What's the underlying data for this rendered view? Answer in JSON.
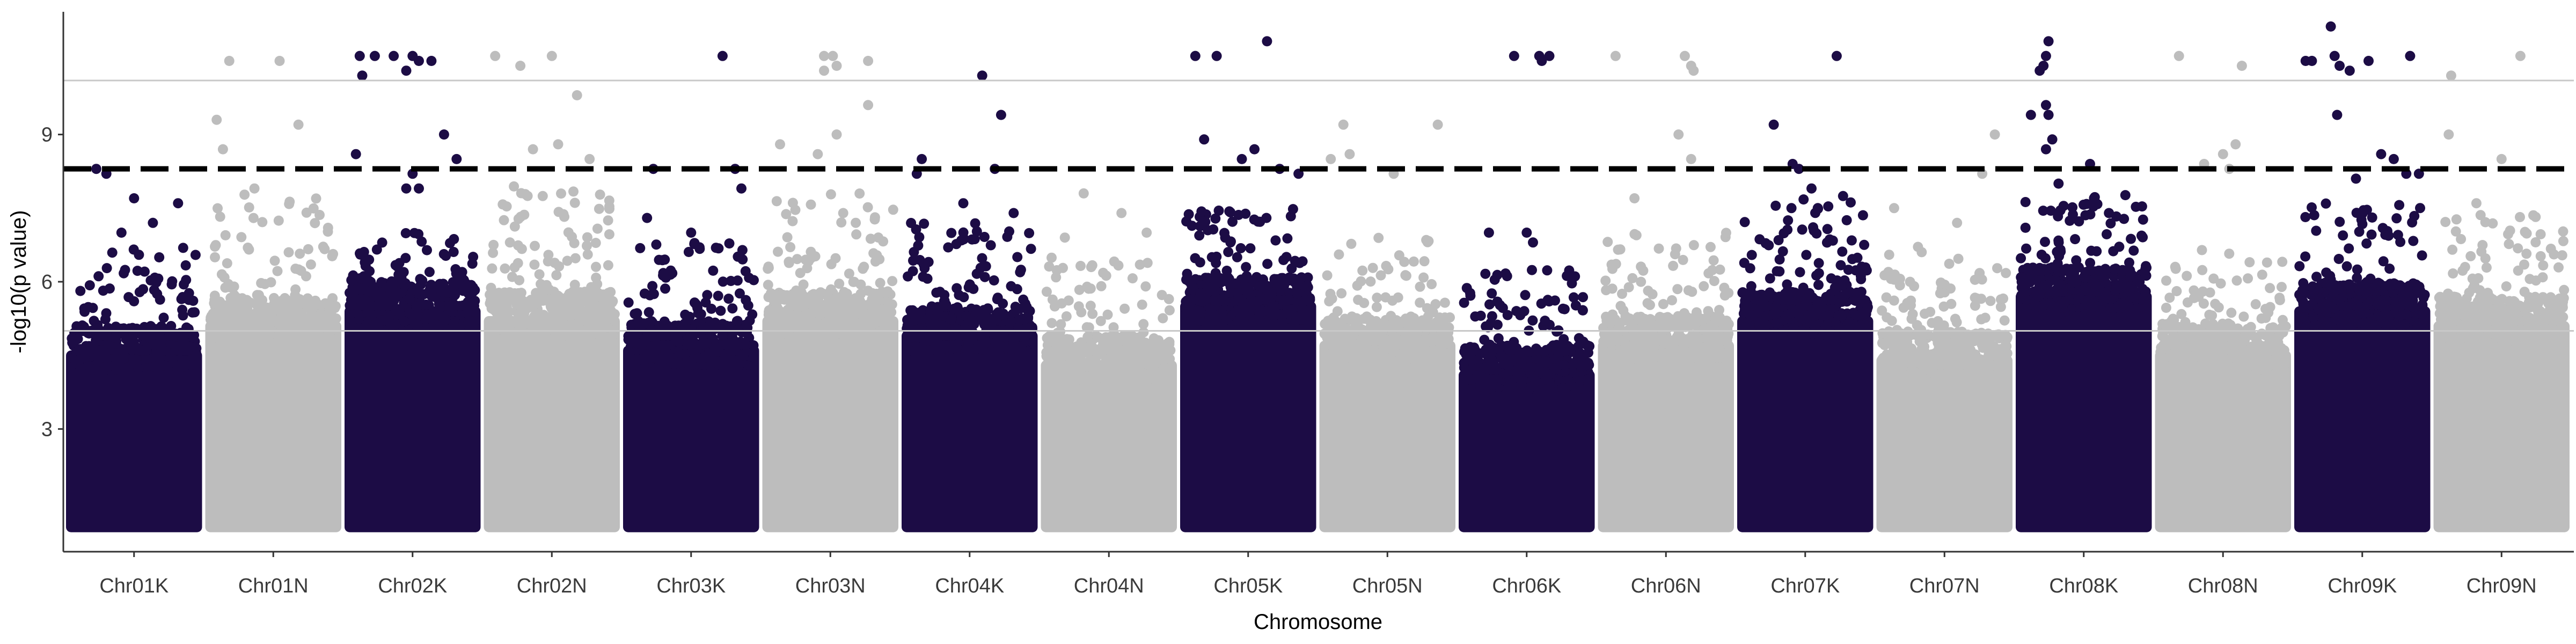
{
  "chart_data": {
    "type": "scatter",
    "subtype": "manhattan",
    "title": "",
    "xlabel": "Chromosome",
    "ylabel": "-log10(p value)",
    "ylim": [
      0.5,
      11.5
    ],
    "yticks": [
      3,
      6,
      9
    ],
    "grid": {
      "major_y": false,
      "reference_lines": [
        5,
        10.1
      ]
    },
    "legend": "none",
    "colors": {
      "dark": "#1c0c45",
      "light": "#bdbdbd",
      "threshold": "#000000",
      "refline": "#c8c8c8"
    },
    "threshold": {
      "value": 8.3,
      "style": "dashed"
    },
    "categories": [
      "Chr01K",
      "Chr01N",
      "Chr02K",
      "Chr02N",
      "Chr03K",
      "Chr03N",
      "Chr04K",
      "Chr04N",
      "Chr05K",
      "Chr05N",
      "Chr06K",
      "Chr06N",
      "Chr07K",
      "Chr07N",
      "Chr08K",
      "Chr08N",
      "Chr09K",
      "Chr09N"
    ],
    "series": [
      {
        "chromosome": "Chr01K",
        "color": "dark",
        "dense_max": 4.6,
        "scatter_max": 6.7,
        "top_points": [
          [
            0.2,
            8.3
          ],
          [
            0.28,
            8.2
          ],
          [
            0.5,
            7.7
          ],
          [
            0.85,
            7.6
          ],
          [
            0.65,
            7.2
          ],
          [
            0.4,
            7.0
          ]
        ]
      },
      {
        "chromosome": "Chr01N",
        "color": "light",
        "dense_max": 5.2,
        "scatter_max": 7.8,
        "top_points": [
          [
            0.15,
            10.5
          ],
          [
            0.55,
            10.5
          ],
          [
            0.7,
            9.2
          ],
          [
            0.05,
            9.3
          ],
          [
            0.1,
            8.7
          ],
          [
            0.35,
            7.9
          ]
        ]
      },
      {
        "chromosome": "Chr02K",
        "color": "dark",
        "dense_max": 5.5,
        "scatter_max": 7.0,
        "top_points": [
          [
            0.08,
            10.6
          ],
          [
            0.2,
            10.6
          ],
          [
            0.35,
            10.6
          ],
          [
            0.5,
            10.6
          ],
          [
            0.55,
            10.5
          ],
          [
            0.65,
            10.5
          ],
          [
            0.1,
            10.2
          ],
          [
            0.45,
            10.3
          ],
          [
            0.05,
            8.6
          ],
          [
            0.45,
            7.9
          ],
          [
            0.55,
            7.9
          ],
          [
            0.5,
            8.2
          ],
          [
            0.75,
            9.0
          ],
          [
            0.85,
            8.5
          ]
        ]
      },
      {
        "chromosome": "Chr02N",
        "color": "light",
        "dense_max": 5.3,
        "scatter_max": 8.0,
        "top_points": [
          [
            0.05,
            10.6
          ],
          [
            0.25,
            10.4
          ],
          [
            0.5,
            10.6
          ],
          [
            0.7,
            9.8
          ],
          [
            0.55,
            8.8
          ],
          [
            0.35,
            8.7
          ],
          [
            0.8,
            8.5
          ]
        ]
      },
      {
        "chromosome": "Chr03K",
        "color": "dark",
        "dense_max": 4.7,
        "scatter_max": 6.8,
        "top_points": [
          [
            0.75,
            10.6
          ],
          [
            0.2,
            8.3
          ],
          [
            0.85,
            8.3
          ],
          [
            0.9,
            7.9
          ],
          [
            0.15,
            7.3
          ],
          [
            0.5,
            7.0
          ]
        ]
      },
      {
        "chromosome": "Chr03N",
        "color": "light",
        "dense_max": 5.3,
        "scatter_max": 7.8,
        "top_points": [
          [
            0.45,
            10.6
          ],
          [
            0.52,
            10.6
          ],
          [
            0.55,
            10.4
          ],
          [
            0.8,
            10.5
          ],
          [
            0.45,
            10.3
          ],
          [
            0.8,
            9.6
          ],
          [
            0.55,
            9.0
          ],
          [
            0.1,
            8.8
          ],
          [
            0.4,
            8.6
          ]
        ]
      },
      {
        "chromosome": "Chr04K",
        "color": "dark",
        "dense_max": 5.0,
        "scatter_max": 7.2,
        "top_points": [
          [
            0.12,
            8.5
          ],
          [
            0.08,
            8.2
          ],
          [
            0.6,
            10.2
          ],
          [
            0.75,
            9.4
          ],
          [
            0.7,
            8.3
          ],
          [
            0.45,
            7.6
          ],
          [
            0.85,
            7.4
          ]
        ]
      },
      {
        "chromosome": "Chr04N",
        "color": "light",
        "dense_max": 4.4,
        "scatter_max": 6.5,
        "top_points": [
          [
            0.3,
            7.8
          ],
          [
            0.6,
            7.4
          ],
          [
            0.8,
            7.0
          ],
          [
            0.15,
            6.9
          ]
        ]
      },
      {
        "chromosome": "Chr05K",
        "color": "dark",
        "dense_max": 5.6,
        "scatter_max": 7.5,
        "top_points": [
          [
            0.08,
            10.6
          ],
          [
            0.25,
            10.6
          ],
          [
            0.65,
            10.9
          ],
          [
            0.55,
            8.7
          ],
          [
            0.45,
            8.5
          ],
          [
            0.15,
            8.9
          ],
          [
            0.75,
            8.3
          ],
          [
            0.9,
            8.2
          ]
        ]
      },
      {
        "chromosome": "Chr05N",
        "color": "light",
        "dense_max": 4.8,
        "scatter_max": 7.0,
        "top_points": [
          [
            0.15,
            9.2
          ],
          [
            0.2,
            8.6
          ],
          [
            0.9,
            9.2
          ],
          [
            0.55,
            8.2
          ],
          [
            0.05,
            8.5
          ]
        ]
      },
      {
        "chromosome": "Chr06K",
        "color": "dark",
        "dense_max": 4.2,
        "scatter_max": 6.3,
        "top_points": [
          [
            0.4,
            10.6
          ],
          [
            0.6,
            10.6
          ],
          [
            0.62,
            10.5
          ],
          [
            0.68,
            10.6
          ],
          [
            0.5,
            7.0
          ],
          [
            0.2,
            7.0
          ],
          [
            0.55,
            6.8
          ]
        ]
      },
      {
        "chromosome": "Chr06N",
        "color": "light",
        "dense_max": 4.8,
        "scatter_max": 7.0,
        "top_points": [
          [
            0.1,
            10.6
          ],
          [
            0.65,
            10.6
          ],
          [
            0.7,
            10.4
          ],
          [
            0.72,
            10.3
          ],
          [
            0.6,
            9.0
          ],
          [
            0.7,
            8.5
          ],
          [
            0.25,
            7.7
          ]
        ]
      },
      {
        "chromosome": "Chr07K",
        "color": "dark",
        "dense_max": 5.3,
        "scatter_max": 7.8,
        "top_points": [
          [
            0.25,
            9.2
          ],
          [
            0.75,
            10.6
          ],
          [
            0.4,
            8.4
          ],
          [
            0.45,
            8.3
          ],
          [
            0.55,
            7.9
          ],
          [
            0.6,
            7.5
          ]
        ]
      },
      {
        "chromosome": "Chr07N",
        "color": "light",
        "dense_max": 4.5,
        "scatter_max": 6.8,
        "top_points": [
          [
            0.9,
            9.0
          ],
          [
            0.1,
            7.5
          ],
          [
            0.8,
            8.2
          ],
          [
            0.6,
            7.2
          ]
        ]
      },
      {
        "chromosome": "Chr08K",
        "color": "dark",
        "dense_max": 5.8,
        "scatter_max": 7.8,
        "top_points": [
          [
            0.22,
            10.9
          ],
          [
            0.2,
            10.6
          ],
          [
            0.18,
            10.4
          ],
          [
            0.15,
            10.3
          ],
          [
            0.2,
            9.6
          ],
          [
            0.22,
            9.4
          ],
          [
            0.08,
            9.4
          ],
          [
            0.25,
            8.9
          ],
          [
            0.2,
            8.7
          ],
          [
            0.55,
            8.4
          ],
          [
            0.3,
            8.0
          ],
          [
            0.7,
            7.4
          ]
        ]
      },
      {
        "chromosome": "Chr08N",
        "color": "light",
        "dense_max": 4.6,
        "scatter_max": 6.7,
        "top_points": [
          [
            0.15,
            10.6
          ],
          [
            0.65,
            10.4
          ],
          [
            0.35,
            8.4
          ],
          [
            0.5,
            8.6
          ],
          [
            0.55,
            8.3
          ],
          [
            0.6,
            8.8
          ]
        ]
      },
      {
        "chromosome": "Chr09K",
        "color": "dark",
        "dense_max": 5.5,
        "scatter_max": 7.6,
        "top_points": [
          [
            0.05,
            10.5
          ],
          [
            0.1,
            10.5
          ],
          [
            0.25,
            11.2
          ],
          [
            0.32,
            10.4
          ],
          [
            0.4,
            10.3
          ],
          [
            0.55,
            10.5
          ],
          [
            0.88,
            10.6
          ],
          [
            0.28,
            10.6
          ],
          [
            0.3,
            9.4
          ],
          [
            0.65,
            8.6
          ],
          [
            0.75,
            8.5
          ],
          [
            0.85,
            8.2
          ],
          [
            0.95,
            8.2
          ],
          [
            0.45,
            8.1
          ]
        ]
      },
      {
        "chromosome": "Chr09N",
        "color": "light",
        "dense_max": 5.2,
        "scatter_max": 7.4,
        "top_points": [
          [
            0.1,
            10.2
          ],
          [
            0.65,
            10.6
          ],
          [
            0.5,
            8.5
          ],
          [
            0.08,
            9.0
          ],
          [
            0.3,
            7.6
          ]
        ]
      }
    ]
  }
}
